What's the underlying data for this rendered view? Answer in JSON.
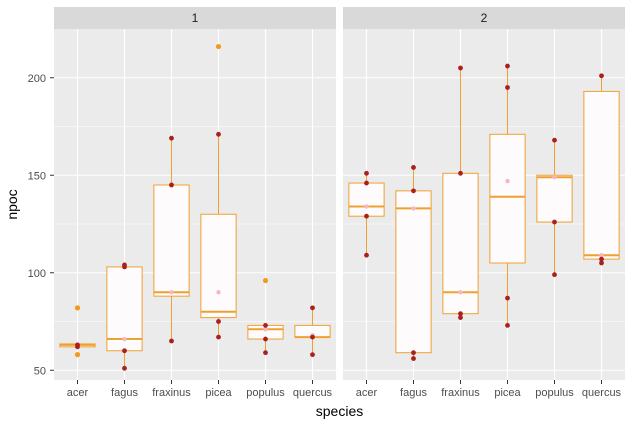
{
  "chart_data": {
    "type": "boxplot",
    "xlabel": "species",
    "ylabel": "npoc",
    "ylim": [
      45,
      225
    ],
    "yticks": [
      50,
      100,
      150,
      200
    ],
    "categories": [
      "acer",
      "fagus",
      "fraxinus",
      "picea",
      "populus",
      "quercus"
    ],
    "colors": {
      "panel_bg": "#ebebeb",
      "strip_bg": "#d9d9d9",
      "grid": "#ffffff",
      "box_line": "#f0a030",
      "box_fill": "#fdfbfb",
      "outlier": "#f29a1a",
      "point": "#aa1f1f",
      "mean": "#f4b8c4"
    },
    "facets": [
      {
        "label": "1",
        "boxes": [
          {
            "category": "acer",
            "min": 62,
            "q1": 62,
            "median": 63,
            "q3": 63.5,
            "max": 63.5,
            "mean": 62.5,
            "points": [
              62,
              63
            ],
            "outliers": [
              58,
              82
            ]
          },
          {
            "category": "fagus",
            "min": 51,
            "q1": 60,
            "median": 66,
            "q3": 103,
            "max": 104,
            "mean": 66,
            "points": [
              51,
              60,
              103,
              104
            ],
            "outliers": []
          },
          {
            "category": "fraxinus",
            "min": 65,
            "q1": 88,
            "median": 90,
            "q3": 145,
            "max": 169,
            "mean": 90,
            "points": [
              65,
              169,
              145
            ],
            "outliers": []
          },
          {
            "category": "picea",
            "min": 67,
            "q1": 77,
            "median": 80,
            "q3": 130,
            "max": 171,
            "mean": 90,
            "points": [
              67,
              75,
              171
            ],
            "outliers": [
              216
            ]
          },
          {
            "category": "populus",
            "min": 59,
            "q1": 66,
            "median": 71,
            "q3": 73,
            "max": 73,
            "mean": 71,
            "points": [
              59,
              66,
              73
            ],
            "outliers": [
              96
            ]
          },
          {
            "category": "quercus",
            "min": 58,
            "q1": 67,
            "median": 67,
            "q3": 73,
            "max": 82,
            "mean": 68,
            "points": [
              58,
              67,
              82
            ],
            "outliers": []
          }
        ]
      },
      {
        "label": "2",
        "boxes": [
          {
            "category": "acer",
            "min": 109,
            "q1": 129,
            "median": 134,
            "q3": 146,
            "max": 151,
            "mean": 134,
            "points": [
              109,
              129,
              151,
              146
            ],
            "outliers": []
          },
          {
            "category": "fagus",
            "min": 56,
            "q1": 59,
            "median": 133,
            "q3": 142,
            "max": 154,
            "mean": 133,
            "points": [
              56,
              59,
              142,
              154
            ],
            "outliers": []
          },
          {
            "category": "fraxinus",
            "min": 77,
            "q1": 79,
            "median": 90,
            "q3": 151,
            "max": 205,
            "mean": 90,
            "points": [
              77,
              79,
              151,
              205
            ],
            "outliers": []
          },
          {
            "category": "picea",
            "min": 73,
            "q1": 105,
            "median": 139,
            "q3": 171,
            "max": 206,
            "mean": 147,
            "points": [
              73,
              87,
              195,
              206
            ],
            "outliers": []
          },
          {
            "category": "populus",
            "min": 99,
            "q1": 126,
            "median": 149,
            "q3": 150,
            "max": 168,
            "mean": 149,
            "points": [
              99,
              126,
              168
            ],
            "outliers": []
          },
          {
            "category": "quercus",
            "min": 105,
            "q1": 107,
            "median": 109,
            "q3": 193,
            "max": 201,
            "mean": 109,
            "points": [
              105,
              107,
              201
            ],
            "outliers": []
          }
        ]
      }
    ]
  }
}
